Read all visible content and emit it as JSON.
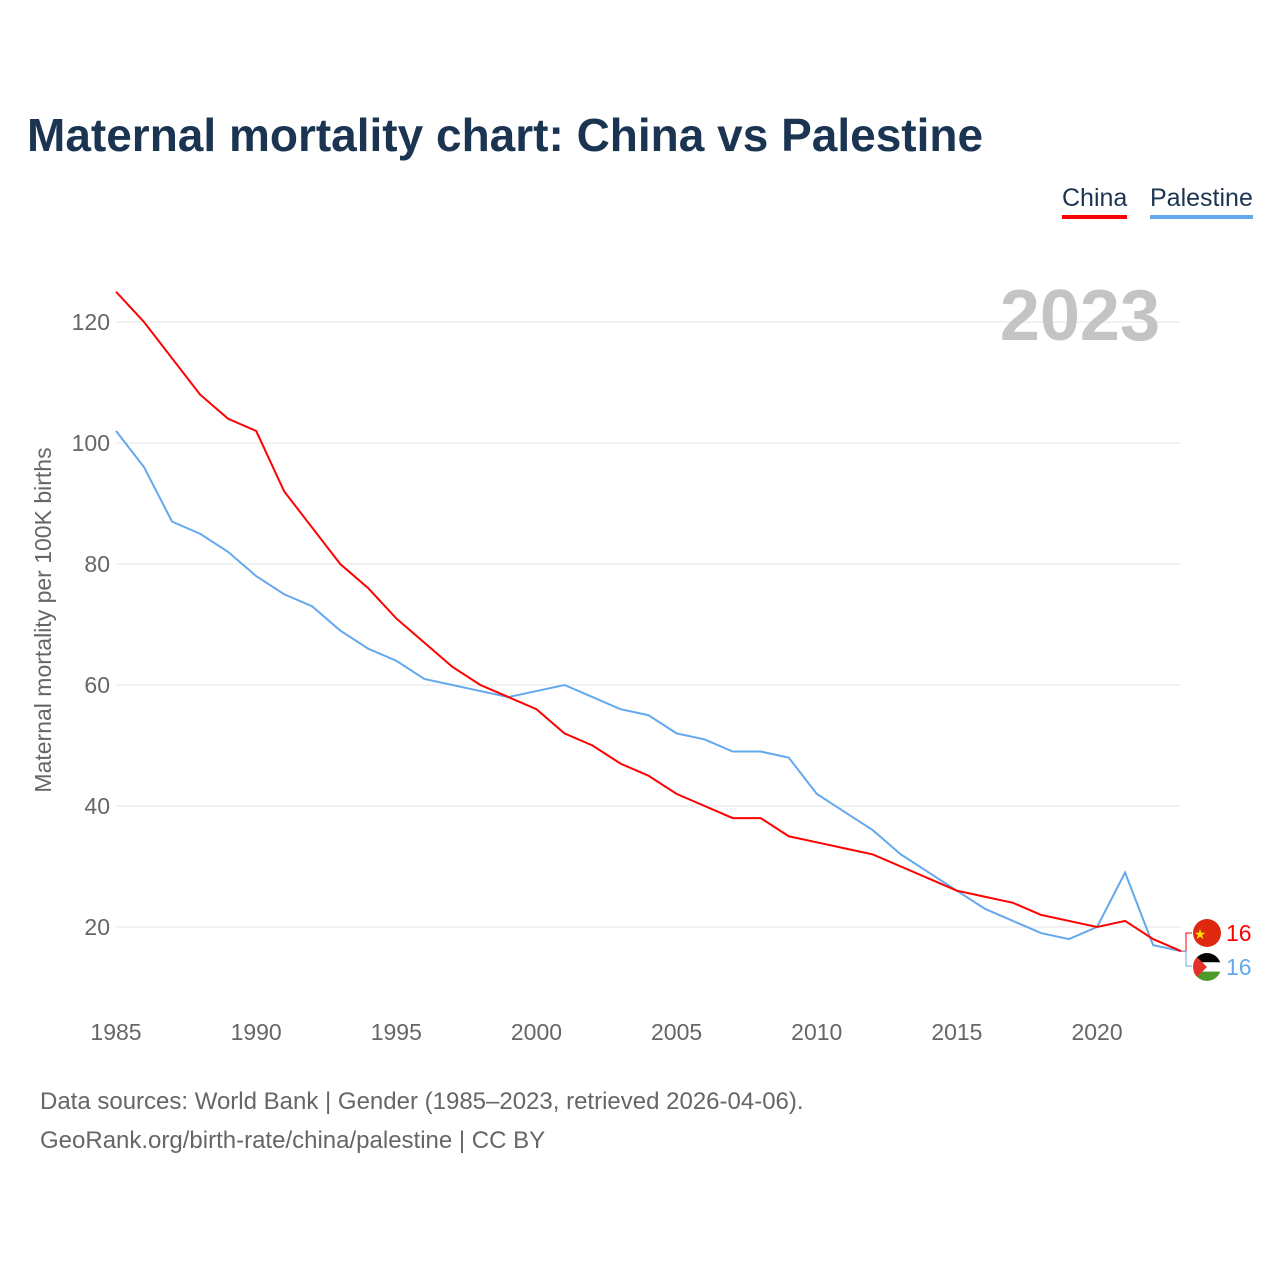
{
  "chart_data": {
    "type": "line",
    "title": "Maternal mortality chart: China vs Palestine",
    "ylabel": "Maternal mortality per 100K births",
    "xlabel": "",
    "year_label": "2023",
    "x": [
      1985,
      1986,
      1987,
      1988,
      1989,
      1990,
      1991,
      1992,
      1993,
      1994,
      1995,
      1996,
      1997,
      1998,
      1999,
      2000,
      2001,
      2002,
      2003,
      2004,
      2005,
      2006,
      2007,
      2008,
      2009,
      2010,
      2011,
      2012,
      2013,
      2014,
      2015,
      2016,
      2017,
      2018,
      2019,
      2020,
      2021,
      2022,
      2023
    ],
    "series": [
      {
        "name": "China",
        "color": "#ff0000",
        "end_label": "16",
        "values": [
          125,
          120,
          114,
          108,
          104,
          102,
          92,
          86,
          80,
          76,
          71,
          67,
          63,
          60,
          58,
          56,
          52,
          50,
          47,
          45,
          42,
          40,
          38,
          38,
          35,
          34,
          33,
          32,
          30,
          28,
          26,
          25,
          24,
          22,
          21,
          20,
          21,
          18,
          16
        ]
      },
      {
        "name": "Palestine",
        "color": "#64a8ee",
        "end_label": "16",
        "values": [
          102,
          96,
          87,
          85,
          82,
          78,
          75,
          73,
          69,
          66,
          64,
          61,
          60,
          59,
          58,
          59,
          60,
          58,
          56,
          55,
          52,
          51,
          49,
          49,
          48,
          42,
          39,
          36,
          32,
          29,
          26,
          23,
          21,
          19,
          18,
          20,
          29,
          17,
          16
        ]
      }
    ],
    "xlim": [
      1985,
      2023
    ],
    "ylim": [
      0,
      130
    ],
    "xticks": [
      "1985",
      "1990",
      "1995",
      "2000",
      "2005",
      "2010",
      "2015",
      "2020"
    ],
    "yticks": [
      "20",
      "40",
      "60",
      "80",
      "100",
      "120"
    ],
    "grid": true,
    "legend": "top-right"
  },
  "footer": {
    "line1": "Data sources: World Bank | Gender (1985–2023, retrieved 2026-04-06).",
    "line2": "GeoRank.org/birth-rate/china/palestine | CC BY"
  }
}
